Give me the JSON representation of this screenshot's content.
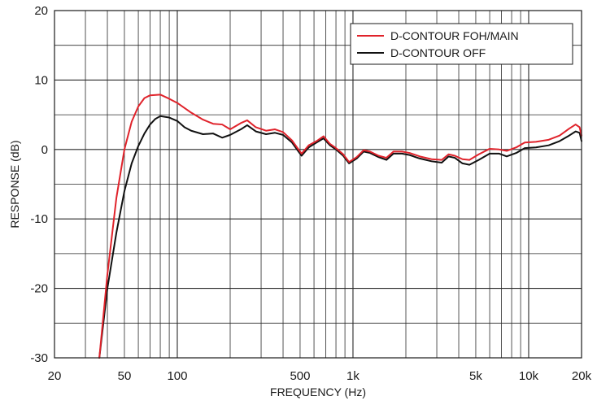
{
  "chart_data": {
    "type": "line",
    "xlabel": "FREQUENCY (Hz)",
    "ylabel": "RESPONSE (dB)",
    "x_scale": "log",
    "xlim": [
      20,
      20000
    ],
    "ylim": [
      -30,
      20
    ],
    "grid": true,
    "legend_position": "top-right",
    "x_tick_labels": [
      {
        "value": 20,
        "label": "20"
      },
      {
        "value": 50,
        "label": "50"
      },
      {
        "value": 100,
        "label": "100"
      },
      {
        "value": 500,
        "label": "500"
      },
      {
        "value": 1000,
        "label": "1k"
      },
      {
        "value": 5000,
        "label": "5k"
      },
      {
        "value": 10000,
        "label": "10k"
      },
      {
        "value": 20000,
        "label": "20k"
      }
    ],
    "y_tick_labels": [
      {
        "value": 20,
        "label": "20"
      },
      {
        "value": 10,
        "label": "10"
      },
      {
        "value": 0,
        "label": "0"
      },
      {
        "value": -10,
        "label": "-10"
      },
      {
        "value": -20,
        "label": "-20"
      },
      {
        "value": -30,
        "label": "-30"
      }
    ],
    "series": [
      {
        "name": "D-CONTOUR FOH/MAIN",
        "color": "#e0232b",
        "points": [
          [
            36,
            -30
          ],
          [
            40,
            -18
          ],
          [
            45,
            -7
          ],
          [
            50,
            0
          ],
          [
            55,
            4
          ],
          [
            60,
            6.2
          ],
          [
            65,
            7.4
          ],
          [
            70,
            7.8
          ],
          [
            80,
            7.9
          ],
          [
            90,
            7.3
          ],
          [
            100,
            6.7
          ],
          [
            120,
            5.3
          ],
          [
            140,
            4.3
          ],
          [
            160,
            3.7
          ],
          [
            180,
            3.6
          ],
          [
            200,
            2.9
          ],
          [
            230,
            3.8
          ],
          [
            250,
            4.2
          ],
          [
            280,
            3.2
          ],
          [
            320,
            2.7
          ],
          [
            360,
            2.9
          ],
          [
            400,
            2.5
          ],
          [
            450,
            1.3
          ],
          [
            480,
            0.3
          ],
          [
            510,
            -0.6
          ],
          [
            560,
            0.6
          ],
          [
            620,
            1.2
          ],
          [
            680,
            1.9
          ],
          [
            740,
            0.8
          ],
          [
            800,
            0.2
          ],
          [
            880,
            -0.7
          ],
          [
            950,
            -1.8
          ],
          [
            1050,
            -1.1
          ],
          [
            1150,
            -0.1
          ],
          [
            1250,
            -0.3
          ],
          [
            1400,
            -0.9
          ],
          [
            1550,
            -1.2
          ],
          [
            1700,
            -0.3
          ],
          [
            1900,
            -0.3
          ],
          [
            2100,
            -0.5
          ],
          [
            2400,
            -1.0
          ],
          [
            2800,
            -1.4
          ],
          [
            3200,
            -1.5
          ],
          [
            3500,
            -0.7
          ],
          [
            3800,
            -0.9
          ],
          [
            4200,
            -1.4
          ],
          [
            4600,
            -1.5
          ],
          [
            5200,
            -0.7
          ],
          [
            6000,
            0.1
          ],
          [
            6800,
            0.0
          ],
          [
            7500,
            -0.2
          ],
          [
            8500,
            0.3
          ],
          [
            9500,
            1.0
          ],
          [
            11000,
            1.1
          ],
          [
            13000,
            1.4
          ],
          [
            15000,
            2.0
          ],
          [
            17000,
            3.0
          ],
          [
            18500,
            3.6
          ],
          [
            19500,
            3.2
          ],
          [
            20000,
            2.0
          ]
        ]
      },
      {
        "name": "D-CONTOUR OFF",
        "color": "#111111",
        "points": [
          [
            36,
            -30
          ],
          [
            40,
            -20
          ],
          [
            45,
            -12
          ],
          [
            50,
            -6
          ],
          [
            55,
            -2
          ],
          [
            60,
            0.5
          ],
          [
            65,
            2.3
          ],
          [
            70,
            3.6
          ],
          [
            75,
            4.4
          ],
          [
            80,
            4.8
          ],
          [
            90,
            4.6
          ],
          [
            100,
            4.1
          ],
          [
            110,
            3.2
          ],
          [
            120,
            2.7
          ],
          [
            140,
            2.2
          ],
          [
            160,
            2.3
          ],
          [
            180,
            1.7
          ],
          [
            200,
            2.1
          ],
          [
            230,
            2.9
          ],
          [
            250,
            3.5
          ],
          [
            280,
            2.6
          ],
          [
            320,
            2.2
          ],
          [
            360,
            2.4
          ],
          [
            400,
            2.1
          ],
          [
            450,
            1.0
          ],
          [
            480,
            0.0
          ],
          [
            510,
            -0.9
          ],
          [
            560,
            0.3
          ],
          [
            620,
            1.0
          ],
          [
            680,
            1.6
          ],
          [
            740,
            0.6
          ],
          [
            800,
            0.0
          ],
          [
            880,
            -0.9
          ],
          [
            950,
            -2.0
          ],
          [
            1050,
            -1.3
          ],
          [
            1150,
            -0.3
          ],
          [
            1250,
            -0.5
          ],
          [
            1400,
            -1.1
          ],
          [
            1550,
            -1.5
          ],
          [
            1700,
            -0.6
          ],
          [
            1900,
            -0.6
          ],
          [
            2100,
            -0.8
          ],
          [
            2400,
            -1.3
          ],
          [
            2800,
            -1.7
          ],
          [
            3200,
            -1.9
          ],
          [
            3500,
            -1.0
          ],
          [
            3800,
            -1.2
          ],
          [
            4200,
            -2.0
          ],
          [
            4600,
            -2.2
          ],
          [
            5200,
            -1.5
          ],
          [
            6000,
            -0.6
          ],
          [
            6800,
            -0.6
          ],
          [
            7500,
            -1.0
          ],
          [
            8500,
            -0.5
          ],
          [
            9500,
            0.2
          ],
          [
            11000,
            0.3
          ],
          [
            13000,
            0.6
          ],
          [
            15000,
            1.2
          ],
          [
            17000,
            2.0
          ],
          [
            18500,
            2.6
          ],
          [
            19500,
            2.4
          ],
          [
            20000,
            1.2
          ]
        ]
      }
    ]
  }
}
